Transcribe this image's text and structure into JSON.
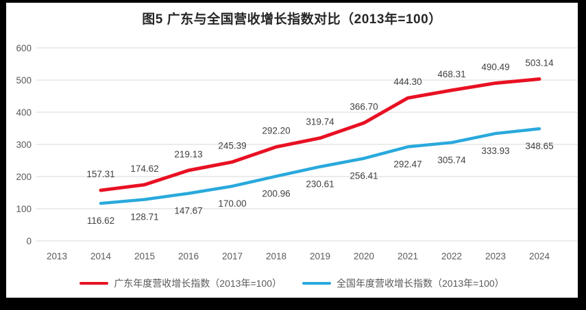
{
  "title": "图5  广东与全国营收增长指数对比（2013年=100）",
  "colors": {
    "guangdong_line": "#E81123",
    "national_line": "#29A9DC",
    "gridline": "#D9D9D9",
    "axis_text": "#595959",
    "data_label_text": "#404040",
    "title_text": "#262626",
    "legend_text": "#595959",
    "frame": "#000000",
    "background": "#FFFFFF"
  },
  "chart_data": {
    "type": "line",
    "title": "图5  广东与全国营收增长指数对比（2013年=100）",
    "categories": [
      "2013",
      "2014",
      "2015",
      "2016",
      "2017",
      "2018",
      "2019",
      "2020",
      "2021",
      "2022",
      "2023",
      "2024"
    ],
    "yticks": [
      0,
      100,
      200,
      300,
      400,
      500,
      600
    ],
    "ylim": [
      0,
      600
    ],
    "xlabel": "",
    "ylabel": "",
    "grid": "horizontal",
    "legend_position": "bottom",
    "series": [
      {
        "name": "广东年度营收增长指数（2013年=100）",
        "color": "#E81123",
        "x": [
          "2014",
          "2015",
          "2016",
          "2017",
          "2018",
          "2019",
          "2020",
          "2021",
          "2022",
          "2023",
          "2024"
        ],
        "values": [
          157.31,
          174.62,
          219.13,
          245.39,
          292.2,
          319.74,
          366.7,
          444.3,
          468.31,
          490.49,
          503.14
        ],
        "labels": [
          "157.31",
          "174.62",
          "219.13",
          "245.39",
          "292.20",
          "319.74",
          "366.70",
          "444.30",
          "468.31",
          "490.49",
          "503.14"
        ],
        "label_position": "above"
      },
      {
        "name": "全国年度营收增长指数（2013年=100）",
        "color": "#29A9DC",
        "x": [
          "2014",
          "2015",
          "2016",
          "2017",
          "2018",
          "2019",
          "2020",
          "2021",
          "2022",
          "2023",
          "2024"
        ],
        "values": [
          116.62,
          128.71,
          147.67,
          170.0,
          200.96,
          230.61,
          256.41,
          292.47,
          305.74,
          333.93,
          348.65
        ],
        "labels": [
          "116.62",
          "128.71",
          "147.67",
          "170.00",
          "200.96",
          "230.61",
          "256.41",
          "292.47",
          "305.74",
          "333.93",
          "348.65"
        ],
        "label_position": "below"
      }
    ]
  }
}
